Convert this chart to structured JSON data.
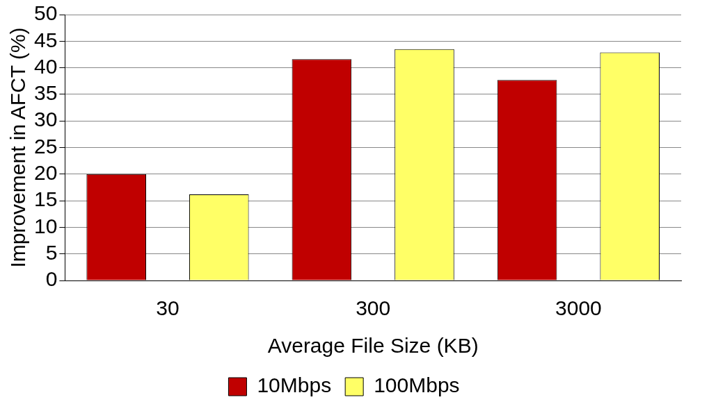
{
  "chart_data": {
    "type": "bar",
    "xlabel": "Average File Size (KB)",
    "ylabel": "Improvement in AFCT (%)",
    "categories": [
      "30",
      "300",
      "3000"
    ],
    "series": [
      {
        "name": "10Mbps",
        "color": "#c00000",
        "values": [
          20,
          41.6,
          37.7
        ]
      },
      {
        "name": "100Mbps",
        "color": "#ffff66",
        "values": [
          16.2,
          43.5,
          42.9
        ]
      }
    ],
    "ylim": [
      0,
      50
    ],
    "yticks": [
      0,
      5,
      10,
      15,
      20,
      25,
      30,
      35,
      40,
      45,
      50
    ],
    "grid": "y",
    "legend": "bottom"
  }
}
